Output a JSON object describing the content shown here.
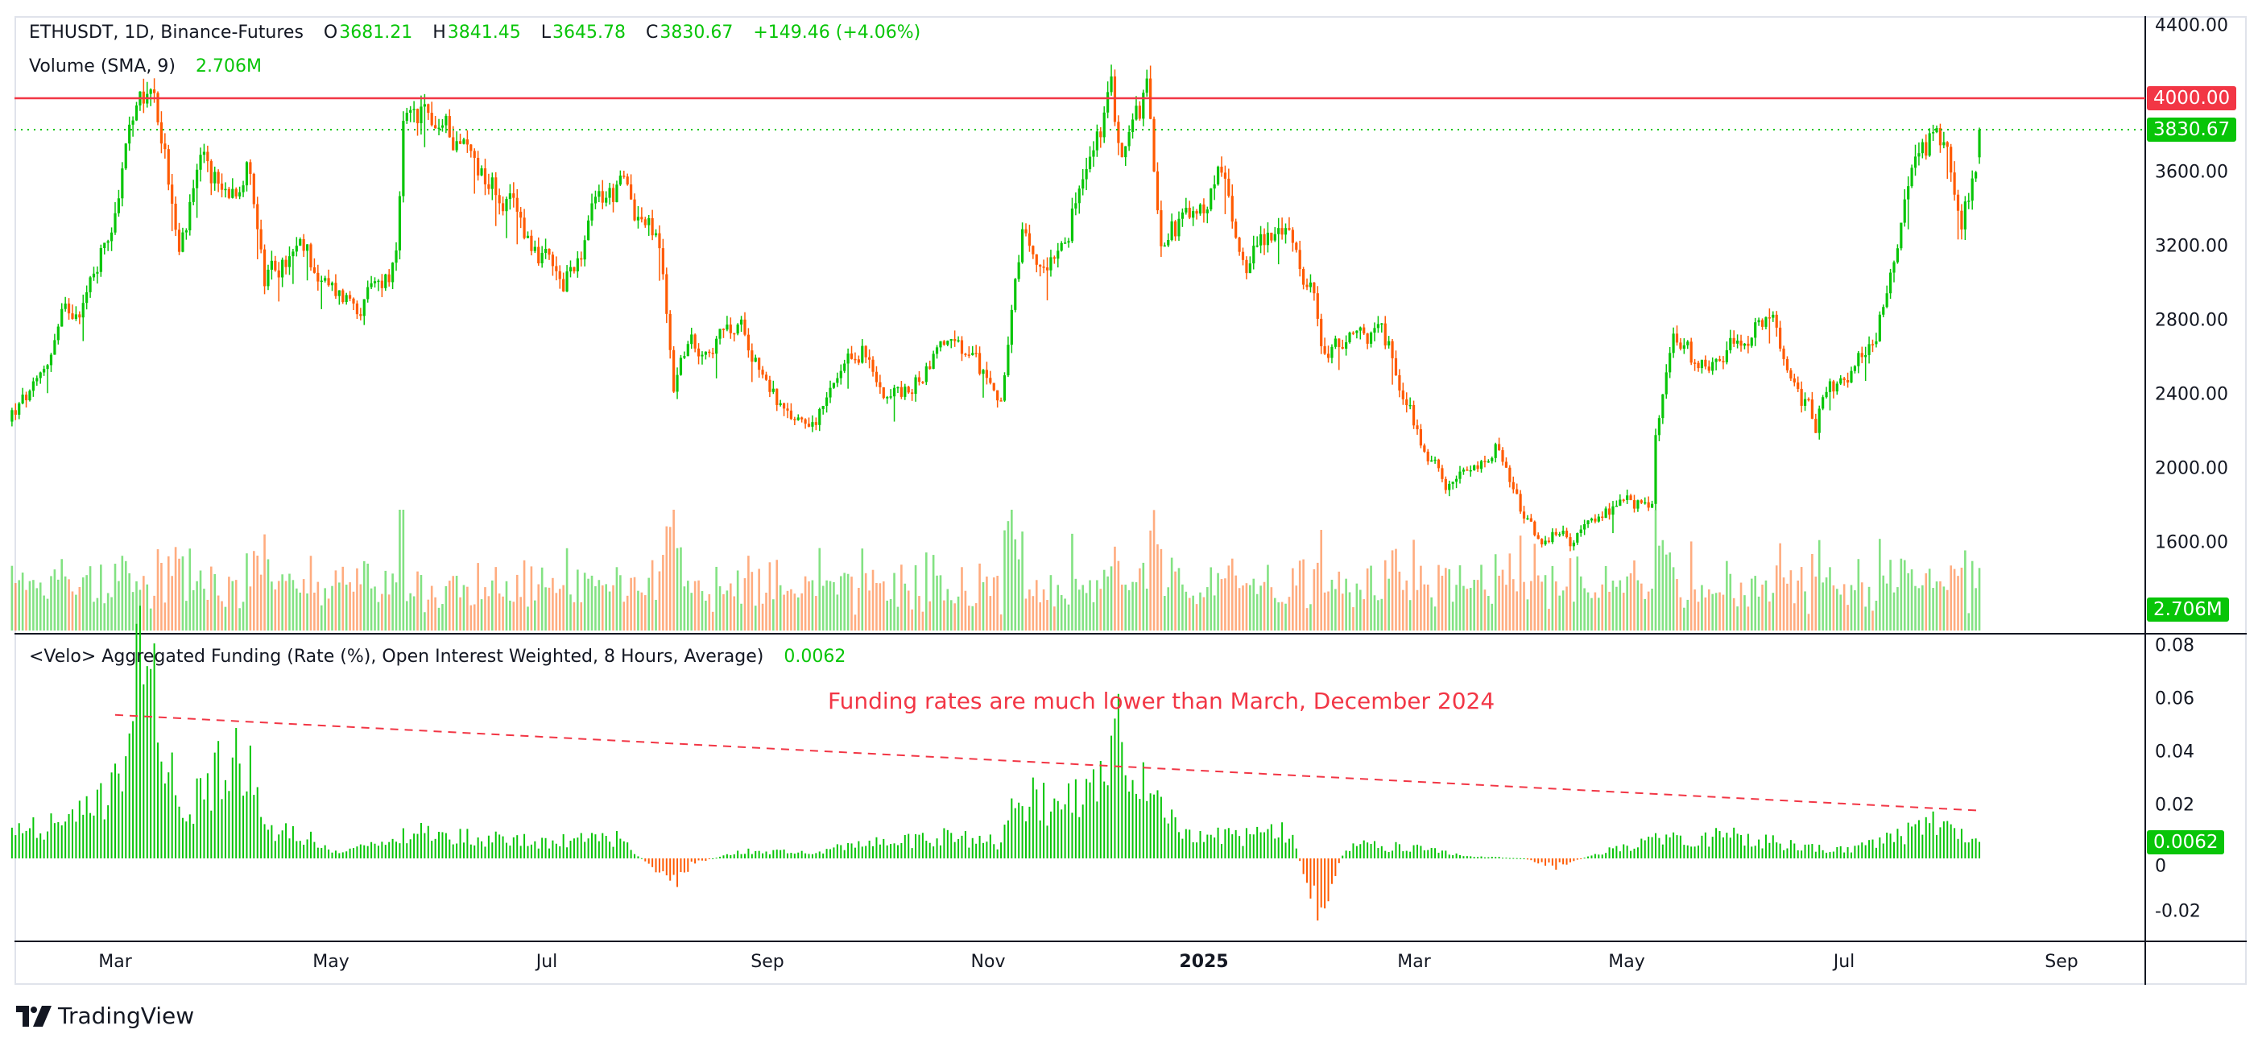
{
  "legend": {
    "symbol": "ETHUSDT, 1D, Binance-Futures",
    "open_label": "O",
    "open": "3681.21",
    "high_label": "H",
    "high": "3841.45",
    "low_label": "L",
    "low": "3645.78",
    "close_label": "C",
    "close": "3830.67",
    "change": "+149.46 (+4.06%)",
    "volume_title": "Volume (SMA, 9)",
    "volume_value": "2.706M",
    "funding_title": "<Velo> Aggregated Funding (Rate (%), Open Interest Weighted, 8 Hours, Average)",
    "funding_value": "0.0062"
  },
  "annotation": "Funding rates are much lower than March, December 2024",
  "price_axis": [
    "4400.00",
    "4000.00",
    "3600.00",
    "3200.00",
    "2800.00",
    "2400.00",
    "2000.00",
    "1600.00"
  ],
  "funding_axis": [
    "0.08",
    "0.06",
    "0.04",
    "0.02",
    "0",
    "-0.02"
  ],
  "time_axis": [
    "Mar",
    "May",
    "Jul",
    "Sep",
    "Nov",
    "2025",
    "Mar",
    "May",
    "Jul",
    "Sep"
  ],
  "tags": {
    "resistance": "4000.00",
    "last_price": "3830.67",
    "volume": "2.706M",
    "funding": "0.0062"
  },
  "logo_text": "TradingView",
  "colors": {
    "up": "#08c508",
    "down": "#ff5a00",
    "resistance": "#f23645",
    "annotation": "#f23645"
  },
  "chart_data": [
    {
      "type": "candlestick",
      "interval": "1D",
      "date_range": [
        "2024-02-01",
        "2025-08-07"
      ],
      "ylim": [
        1200,
        4450
      ],
      "horizontal_lines": [
        {
          "value": 4000,
          "style": "solid",
          "color": "#f23645"
        },
        {
          "value": 3830.67,
          "style": "dotted",
          "color": "#08c508"
        }
      ],
      "last_bar": {
        "date": "2025-08-07",
        "open": 3681.21,
        "high": 3841.45,
        "low": 3645.78,
        "close": 3830.67
      },
      "close_approx": [
        [
          "2024-02-01",
          2300
        ],
        [
          "2024-02-08",
          2420
        ],
        [
          "2024-02-15",
          2800
        ],
        [
          "2024-02-22",
          2950
        ],
        [
          "2024-02-29",
          3350
        ],
        [
          "2024-03-05",
          3800
        ],
        [
          "2024-03-12",
          4050
        ],
        [
          "2024-03-15",
          3700
        ],
        [
          "2024-03-19",
          3150
        ],
        [
          "2024-03-25",
          3600
        ],
        [
          "2024-04-01",
          3500
        ],
        [
          "2024-04-08",
          3650
        ],
        [
          "2024-04-12",
          3000
        ],
        [
          "2024-04-20",
          3150
        ],
        [
          "2024-04-24",
          3150
        ],
        [
          "2024-04-30",
          2950
        ],
        [
          "2024-05-10",
          2900
        ],
        [
          "2024-05-19",
          3100
        ],
        [
          "2024-05-21",
          3800
        ],
        [
          "2024-05-27",
          3900
        ],
        [
          "2024-06-05",
          3800
        ],
        [
          "2024-06-15",
          3550
        ],
        [
          "2024-06-24",
          3300
        ],
        [
          "2024-07-05",
          2950
        ],
        [
          "2024-07-15",
          3450
        ],
        [
          "2024-07-22",
          3500
        ],
        [
          "2024-08-01",
          3200
        ],
        [
          "2024-08-05",
          2450
        ],
        [
          "2024-08-08",
          2650
        ],
        [
          "2024-08-25",
          2750
        ],
        [
          "2024-09-06",
          2250
        ],
        [
          "2024-09-15",
          2300
        ],
        [
          "2024-09-27",
          2650
        ],
        [
          "2024-10-01",
          2450
        ],
        [
          "2024-10-10",
          2400
        ],
        [
          "2024-10-20",
          2700
        ],
        [
          "2024-10-31",
          2500
        ],
        [
          "2024-11-05",
          2400
        ],
        [
          "2024-11-11",
          3200
        ],
        [
          "2024-11-15",
          3050
        ],
        [
          "2024-11-24",
          3350
        ],
        [
          "2024-12-01",
          3700
        ],
        [
          "2024-12-06",
          4000
        ],
        [
          "2024-12-09",
          3700
        ],
        [
          "2024-12-16",
          4000
        ],
        [
          "2024-12-20",
          3300
        ],
        [
          "2024-12-31",
          3350
        ],
        [
          "2025-01-06",
          3650
        ],
        [
          "2025-01-09",
          3300
        ],
        [
          "2025-01-13",
          3150
        ],
        [
          "2025-01-20",
          3300
        ],
        [
          "2025-01-27",
          3200
        ],
        [
          "2025-02-02",
          2850
        ],
        [
          "2025-02-03",
          2650
        ],
        [
          "2025-02-10",
          2650
        ],
        [
          "2025-02-20",
          2750
        ],
        [
          "2025-02-25",
          2500
        ],
        [
          "2025-03-03",
          2150
        ],
        [
          "2025-03-11",
          1900
        ],
        [
          "2025-03-20",
          2000
        ],
        [
          "2025-03-24",
          2100
        ],
        [
          "2025-03-29",
          1850
        ],
        [
          "2025-04-06",
          1550
        ],
        [
          "2025-04-09",
          1650
        ],
        [
          "2025-04-15",
          1600
        ],
        [
          "2025-04-22",
          1750
        ],
        [
          "2025-04-30",
          1800
        ],
        [
          "2025-05-07",
          1800
        ],
        [
          "2025-05-08",
          2200
        ],
        [
          "2025-05-13",
          2700
        ],
        [
          "2025-05-20",
          2550
        ],
        [
          "2025-05-27",
          2650
        ],
        [
          "2025-06-10",
          2800
        ],
        [
          "2025-06-13",
          2550
        ],
        [
          "2025-06-22",
          2250
        ],
        [
          "2025-06-24",
          2450
        ],
        [
          "2025-07-01",
          2450
        ],
        [
          "2025-07-09",
          2750
        ],
        [
          "2025-07-16",
          3350
        ],
        [
          "2025-07-20",
          3750
        ],
        [
          "2025-07-28",
          3800
        ],
        [
          "2025-08-02",
          3400
        ],
        [
          "2025-08-06",
          3680
        ],
        [
          "2025-08-07",
          3830.67
        ]
      ]
    },
    {
      "type": "bar",
      "name": "Volume (SMA, 9)",
      "last_value": "2.706M"
    },
    {
      "type": "bar",
      "name": "<Velo> Aggregated Funding (Rate (%), Open Interest Weighted, 8 Hours, Average)",
      "ylim": [
        -0.025,
        0.085
      ],
      "values_approx": [
        [
          "2024-02-01",
          0.01
        ],
        [
          "2024-02-20",
          0.015
        ],
        [
          "2024-03-01",
          0.025
        ],
        [
          "2024-03-05",
          0.05
        ],
        [
          "2024-03-08",
          0.07
        ],
        [
          "2024-03-12",
          0.06
        ],
        [
          "2024-03-15",
          0.045
        ],
        [
          "2024-03-20",
          0.012
        ],
        [
          "2024-03-28",
          0.03
        ],
        [
          "2024-04-05",
          0.045
        ],
        [
          "2024-04-12",
          0.01
        ],
        [
          "2024-04-20",
          0.012
        ],
        [
          "2024-05-01",
          0.002
        ],
        [
          "2024-05-15",
          0.005
        ],
        [
          "2024-05-25",
          0.01
        ],
        [
          "2024-06-10",
          0.008
        ],
        [
          "2024-07-01",
          0.006
        ],
        [
          "2024-07-20",
          0.008
        ],
        [
          "2024-08-05",
          -0.01
        ],
        [
          "2024-08-10",
          -0.002
        ],
        [
          "2024-08-25",
          0.003
        ],
        [
          "2024-09-10",
          0.002
        ],
        [
          "2024-10-01",
          0.006
        ],
        [
          "2024-10-20",
          0.008
        ],
        [
          "2024-11-05",
          0.006
        ],
        [
          "2024-11-10",
          0.025
        ],
        [
          "2024-11-20",
          0.02
        ],
        [
          "2024-12-05",
          0.03
        ],
        [
          "2024-12-08",
          0.048
        ],
        [
          "2024-12-15",
          0.025
        ],
        [
          "2024-12-25",
          0.01
        ],
        [
          "2025-01-15",
          0.008
        ],
        [
          "2025-01-25",
          0.01
        ],
        [
          "2025-02-03",
          -0.022
        ],
        [
          "2025-02-10",
          0.005
        ],
        [
          "2025-03-01",
          0.004
        ],
        [
          "2025-03-15",
          0.001
        ],
        [
          "2025-04-01",
          0.0
        ],
        [
          "2025-04-10",
          -0.003
        ],
        [
          "2025-04-25",
          0.003
        ],
        [
          "2025-05-10",
          0.008
        ],
        [
          "2025-06-01",
          0.008
        ],
        [
          "2025-06-20",
          0.004
        ],
        [
          "2025-07-01",
          0.003
        ],
        [
          "2025-07-15",
          0.008
        ],
        [
          "2025-07-25",
          0.013
        ],
        [
          "2025-08-01",
          0.008
        ],
        [
          "2025-08-07",
          0.0062
        ]
      ],
      "trendline": {
        "from": [
          "2024-03-01",
          0.054
        ],
        "to": [
          "2025-08-07",
          0.018
        ],
        "style": "dashed",
        "color": "#f23645"
      }
    }
  ]
}
